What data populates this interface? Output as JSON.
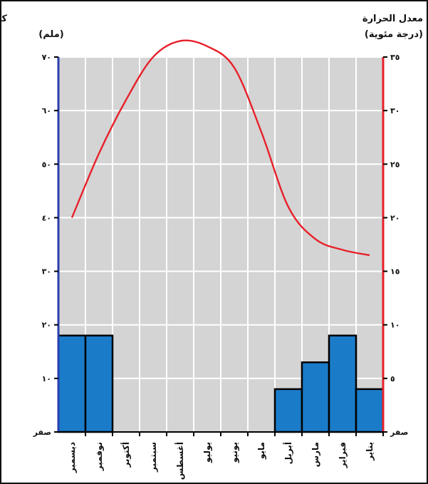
{
  "chart_data": {
    "type": "bar+line",
    "left_axis_title": [
      "كمية المتساقطات",
      "(ملم)"
    ],
    "right_axis_title": [
      "معدل الحرارة",
      "(درجة مئوية)"
    ],
    "categories": [
      "ديسمبر",
      "نوفمبر",
      "أكتوبر",
      "سبتمبر",
      "أغسطس",
      "يوليو",
      "يونيو",
      "مايو",
      "أبريل",
      "مارس",
      "فبراير",
      "يناير"
    ],
    "precipitation_mm": [
      18,
      18,
      0,
      0,
      0,
      0,
      0,
      0,
      8,
      13,
      18,
      8
    ],
    "temperature_c": [
      20,
      26,
      31,
      35,
      36.5,
      36,
      34,
      28,
      21,
      18,
      17,
      16.5
    ],
    "left_axis": {
      "range": [
        0,
        70
      ],
      "ticks": [
        0,
        10,
        20,
        30,
        40,
        50,
        60,
        70
      ],
      "tick_labels": [
        "صفر",
        "١٠",
        "٢٠",
        "٣٠",
        "٤٠",
        "٥٠",
        "٦٠",
        "٧٠"
      ]
    },
    "right_axis": {
      "range": [
        0,
        35
      ],
      "ticks": [
        0,
        5,
        10,
        15,
        20,
        25,
        30,
        35
      ],
      "tick_labels": [
        "صفر",
        "٥",
        "١٠",
        "١٥",
        "٢٠",
        "٢٥",
        "٣٠",
        "٣٥"
      ]
    },
    "grid": true,
    "colors": {
      "bar": "#1a7cc9",
      "line": "#e8202a",
      "left_axis": "#2a3fb0",
      "right_axis": "#e8202a",
      "plot_bg": "#d4d4d4",
      "grid": "#ffffff"
    }
  }
}
